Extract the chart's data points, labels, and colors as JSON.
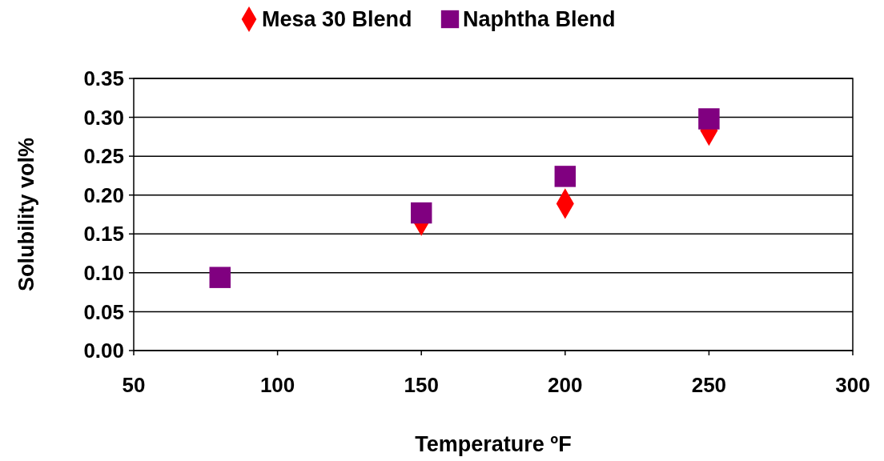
{
  "chart_data": {
    "type": "scatter",
    "xlabel": "Temperature ºF",
    "ylabel": "Solubility vol%",
    "series": [
      {
        "name": "Mesa 30 Blend",
        "color": "#ff0000",
        "marker": "diamond",
        "x": [
          150,
          200,
          250
        ],
        "values": [
          0.167,
          0.189,
          0.283
        ]
      },
      {
        "name": "Naphtha Blend",
        "color": "#800080",
        "marker": "square",
        "x": [
          80,
          150,
          200,
          250
        ],
        "values": [
          0.094,
          0.177,
          0.224,
          0.298
        ]
      }
    ],
    "xlim": [
      50,
      300
    ],
    "xticks": [
      50,
      100,
      150,
      200,
      250,
      300
    ],
    "ylim": [
      0,
      0.35
    ],
    "yticks": [
      {
        "value": 0,
        "label": "0.00"
      },
      {
        "value": 0.05,
        "label": "0.05"
      },
      {
        "value": 0.1,
        "label": "0.10"
      },
      {
        "value": 0.15,
        "label": "0.15"
      },
      {
        "value": 0.2,
        "label": "0.20"
      },
      {
        "value": 0.25,
        "label": "0.25"
      },
      {
        "value": 0.3,
        "label": "0.30"
      },
      {
        "value": 0.35,
        "label": "0.35"
      }
    ],
    "grid": "y",
    "legend": "top"
  }
}
